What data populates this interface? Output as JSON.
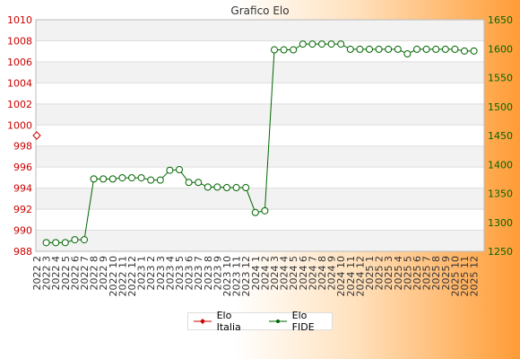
{
  "chart_data": {
    "type": "line",
    "title": "Grafico Elo",
    "x": [
      "2022 2",
      "2022 3",
      "2022 4",
      "2022 5",
      "2022 6",
      "2022 7",
      "2022 8",
      "2022 9",
      "2022 10",
      "2022 11",
      "2022 12",
      "2023 1",
      "2023 2",
      "2023 3",
      "2023 4",
      "2023 5",
      "2023 6",
      "2023 7",
      "2023 8",
      "2023 9",
      "2023 10",
      "2023 11",
      "2023 12",
      "2024 1",
      "2024 2",
      "2024 3",
      "2024 4",
      "2024 5",
      "2024 6",
      "2024 7",
      "2024 8",
      "2024 9",
      "2024 10",
      "2024 11",
      "2024 12",
      "2025 1",
      "2025 2",
      "2025 3",
      "2025 4",
      "2025 5",
      "2025 6",
      "2025 7",
      "2025 8",
      "2025 9",
      "2025 10",
      "2025 11",
      "2025 12"
    ],
    "y_left": {
      "min": 988,
      "max": 1010,
      "ticks": [
        988,
        990,
        992,
        994,
        996,
        998,
        1000,
        1002,
        1004,
        1006,
        1008,
        1010
      ],
      "color": "#cc0000"
    },
    "y_right": {
      "min": 1250,
      "max": 1650,
      "ticks": [
        1250,
        1300,
        1350,
        1400,
        1450,
        1500,
        1550,
        1600,
        1650
      ],
      "color": "#006600"
    },
    "grid": true,
    "legend_position": "bottom-center",
    "series": [
      {
        "name": "Elo Italia",
        "axis": "left",
        "color": "#cc0000",
        "marker": "diamond",
        "line": false,
        "values": [
          999,
          null,
          null,
          null,
          null,
          null,
          null,
          null,
          null,
          null,
          null,
          null,
          null,
          null,
          null,
          null,
          null,
          null,
          null,
          null,
          null,
          null,
          null,
          null,
          null,
          null,
          null,
          null,
          null,
          null,
          null,
          null,
          null,
          null,
          null,
          null,
          null,
          null,
          null,
          null,
          null,
          null,
          null,
          null,
          null,
          null,
          null
        ]
      },
      {
        "name": "Elo FIDE",
        "axis": "right",
        "color": "#006600",
        "marker": "circle",
        "line": true,
        "values": [
          null,
          1265,
          1265,
          1265,
          1270,
          1270,
          1375,
          1375,
          1375,
          1377,
          1377,
          1377,
          1373,
          1373,
          1390,
          1391,
          1369,
          1369,
          1361,
          1361,
          1360,
          1360,
          1360,
          1317,
          1320,
          1598,
          1598,
          1598,
          1608,
          1608,
          1608,
          1608,
          1608,
          1599,
          1599,
          1599,
          1599,
          1599,
          1599,
          1591,
          1599,
          1599,
          1599,
          1599,
          1599,
          1596,
          1596
        ]
      }
    ]
  }
}
